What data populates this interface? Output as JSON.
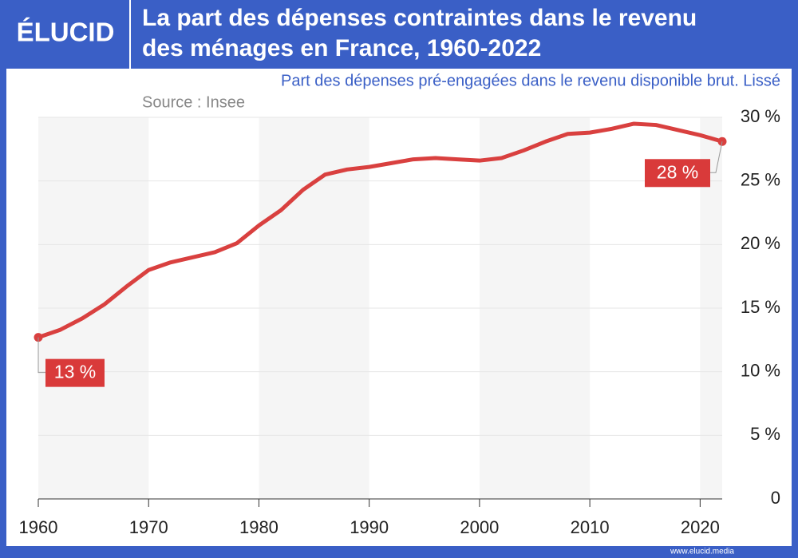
{
  "logo": "ÉLUCID",
  "footer": "www.elucid.media",
  "chart_data": {
    "type": "line",
    "title": [
      "La part des dépenses contraintes dans le revenu",
      "des ménages en France, 1960-2022"
    ],
    "subtitle": "Part des dépenses pré-engagées dans le revenu disponible brut. Lissé",
    "source": "Source : Insee",
    "x": [
      1960,
      1962,
      1964,
      1966,
      1968,
      1970,
      1972,
      1974,
      1976,
      1978,
      1980,
      1982,
      1984,
      1986,
      1988,
      1990,
      1992,
      1994,
      1996,
      1998,
      2000,
      2002,
      2004,
      2006,
      2008,
      2010,
      2012,
      2014,
      2016,
      2018,
      2020,
      2022
    ],
    "values": [
      12.7,
      13.3,
      14.2,
      15.3,
      16.7,
      18.0,
      18.6,
      19.0,
      19.4,
      20.1,
      21.5,
      22.7,
      24.3,
      25.5,
      25.9,
      26.1,
      26.4,
      26.7,
      26.8,
      26.7,
      26.6,
      26.8,
      27.4,
      28.1,
      28.7,
      28.8,
      29.1,
      29.5,
      29.4,
      29.0,
      28.6,
      28.1
    ],
    "value_labels": [
      "13 %",
      null,
      null,
      null,
      null,
      null,
      null,
      null,
      null,
      null,
      null,
      null,
      null,
      null,
      null,
      null,
      null,
      null,
      null,
      null,
      null,
      null,
      null,
      null,
      null,
      null,
      null,
      null,
      null,
      null,
      null,
      "28 %"
    ],
    "color": "#d9403f",
    "xlim": [
      1960,
      2022
    ],
    "xticks": [
      1960,
      1970,
      1980,
      1990,
      2000,
      2010,
      2020
    ],
    "ylim": [
      0,
      30
    ],
    "yticks": [
      0,
      {
        "value": 5,
        "label": "5 %"
      },
      {
        "value": 10,
        "label": "10 %"
      },
      {
        "value": 15,
        "label": "15 %"
      },
      {
        "value": 20,
        "label": "20 %"
      },
      {
        "value": 25,
        "label": "25 %"
      },
      {
        "value": 30,
        "label": "30 %"
      }
    ],
    "grid": true
  }
}
